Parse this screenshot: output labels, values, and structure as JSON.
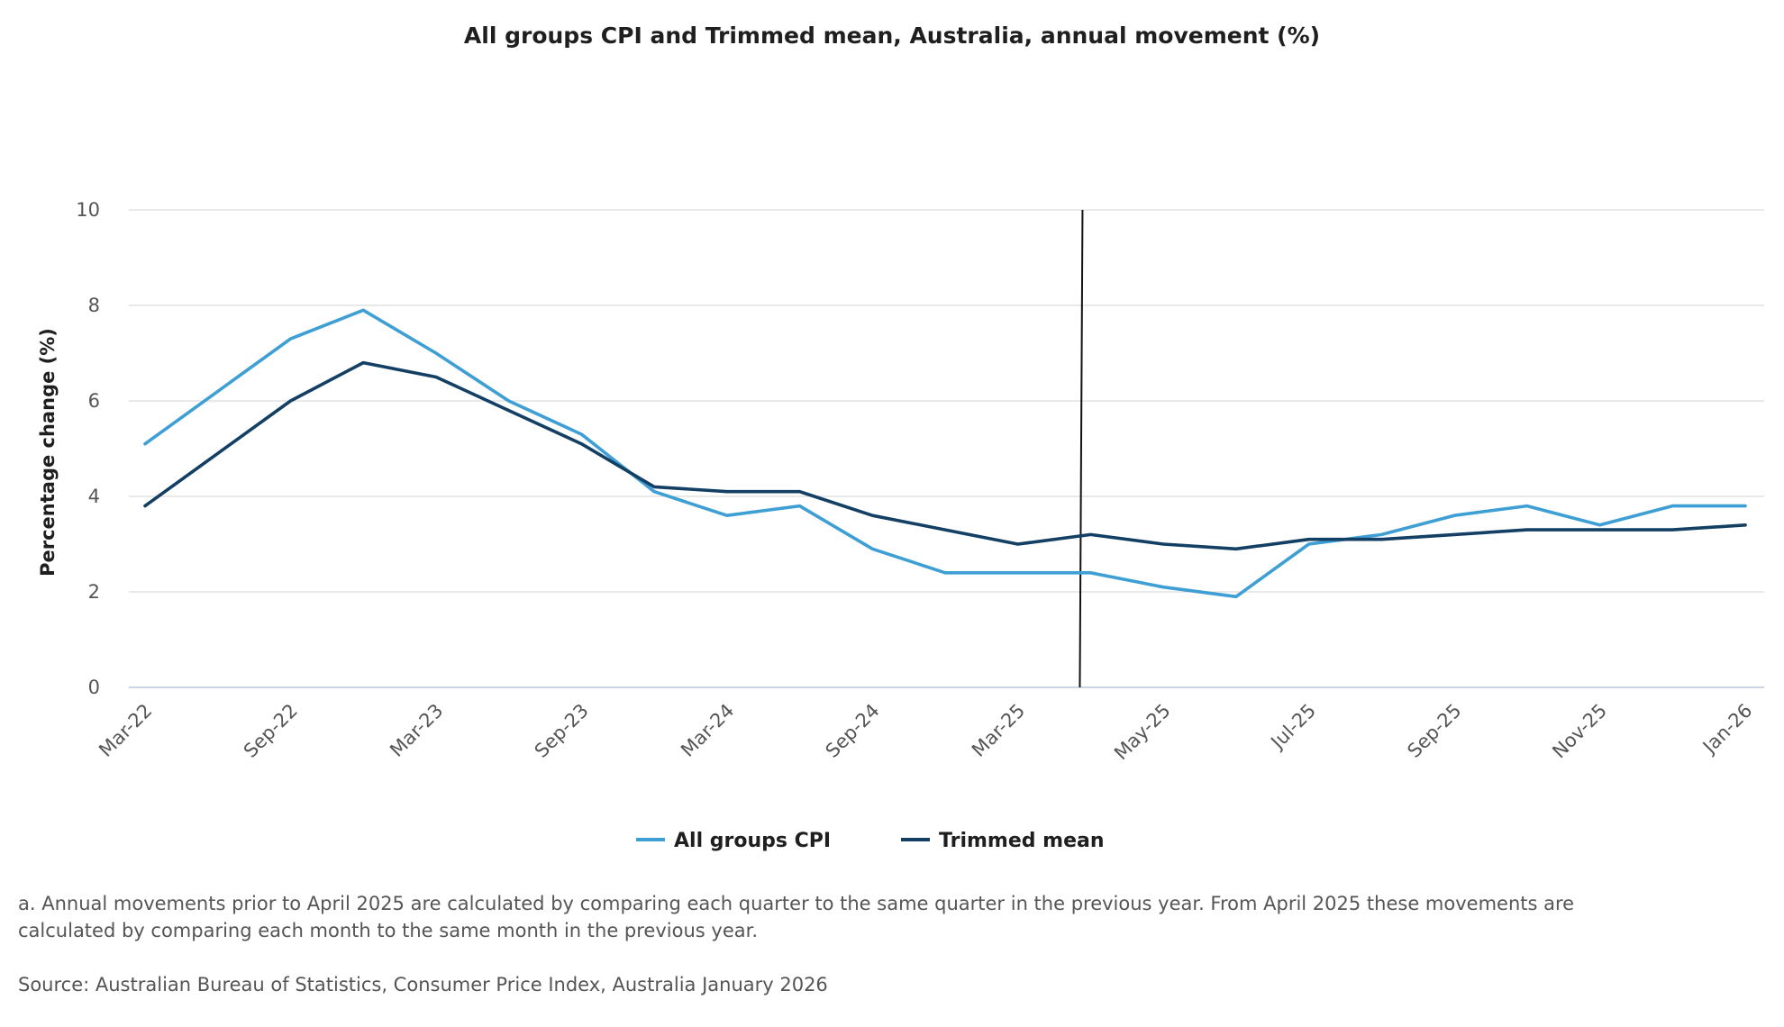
{
  "chart_data": {
    "type": "line",
    "title": "All groups CPI and Trimmed mean, Australia, annual movement (%)",
    "xlabel": "",
    "ylabel": "Percentage change (%)",
    "ylim": [
      0,
      10
    ],
    "yticks": [
      0,
      2,
      4,
      6,
      8,
      10
    ],
    "grid": true,
    "legend_position": "bottom-center",
    "x": [
      "Mar-22",
      "Jun-22",
      "Sep-22",
      "Dec-22",
      "Mar-23",
      "Jun-23",
      "Sep-23",
      "Dec-23",
      "Mar-24",
      "Jun-24",
      "Sep-24",
      "Dec-24",
      "Mar-25",
      "Apr-25",
      "May-25",
      "Jun-25",
      "Jul-25",
      "Aug-25",
      "Sep-25",
      "Oct-25",
      "Nov-25",
      "Dec-25",
      "Jan-26"
    ],
    "x_tick_labels": [
      "Mar-22",
      "Sep-22",
      "Mar-23",
      "Sep-23",
      "Mar-24",
      "Sep-24",
      "Mar-25",
      "May-25",
      "Jul-25",
      "Sep-25",
      "Nov-25",
      "Jan-26"
    ],
    "series": [
      {
        "name": "All groups CPI",
        "color": "#3e9fd4",
        "values": [
          5.1,
          6.2,
          7.3,
          7.9,
          7.0,
          6.0,
          5.3,
          4.1,
          3.6,
          3.8,
          2.9,
          2.4,
          2.4,
          2.4,
          2.1,
          1.9,
          3.0,
          3.2,
          3.6,
          3.8,
          3.4,
          3.8,
          3.8
        ]
      },
      {
        "name": "Trimmed mean",
        "color": "#123f63",
        "values": [
          3.8,
          4.9,
          6.0,
          6.8,
          6.5,
          5.8,
          5.1,
          4.2,
          4.1,
          4.1,
          3.6,
          3.3,
          3.0,
          3.2,
          3.0,
          2.9,
          3.1,
          3.1,
          3.2,
          3.3,
          3.3,
          3.3,
          3.4
        ]
      }
    ],
    "annotations": [
      {
        "type": "vertical-line",
        "at": "Apr-25",
        "label": ""
      }
    ]
  },
  "footnotes": {
    "note": "a. Annual movements prior to April 2025 are calculated by comparing each quarter to the same quarter in the previous year.  From April 2025 these movements are calculated by comparing each month to the same month in the previous year.",
    "source": "Source: Australian Bureau of Statistics, Consumer Price Index, Australia January 2026"
  }
}
